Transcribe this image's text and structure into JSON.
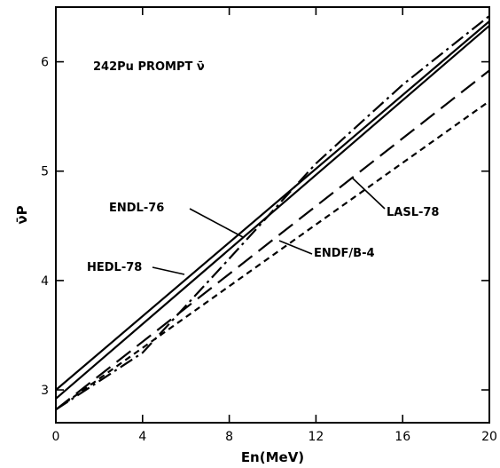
{
  "chart_data": {
    "type": "line",
    "title": "",
    "xlabel": "En(MeV)",
    "ylabel": "ν̄P",
    "xlim": [
      0,
      20
    ],
    "ylim": [
      2.7,
      6.5
    ],
    "x_ticks": [
      0,
      4,
      8,
      12,
      16,
      20
    ],
    "y_ticks": [
      3,
      4,
      5,
      6
    ],
    "grid": false,
    "legend": "none",
    "annotation_text": "242Pu PROMPT ν̄",
    "series": [
      {
        "name": "ENDL-76",
        "style": "solid",
        "x": [
          0,
          20
        ],
        "y": [
          3.0,
          6.37
        ]
      },
      {
        "name": "HEDL-78",
        "style": "solid",
        "x": [
          0,
          20
        ],
        "y": [
          2.92,
          6.33
        ]
      },
      {
        "name": "LASL-78",
        "style": "dashdot",
        "x": [
          0,
          4,
          8,
          12,
          16,
          20
        ],
        "y": [
          2.82,
          3.34,
          4.2,
          5.07,
          5.79,
          6.42
        ]
      },
      {
        "name": "ENDF/B-4",
        "style": "longdash",
        "x": [
          0,
          20
        ],
        "y": [
          2.82,
          5.92
        ]
      },
      {
        "name": "",
        "style": "shortdash",
        "x": [
          0,
          20
        ],
        "y": [
          2.82,
          5.64
        ]
      }
    ]
  }
}
